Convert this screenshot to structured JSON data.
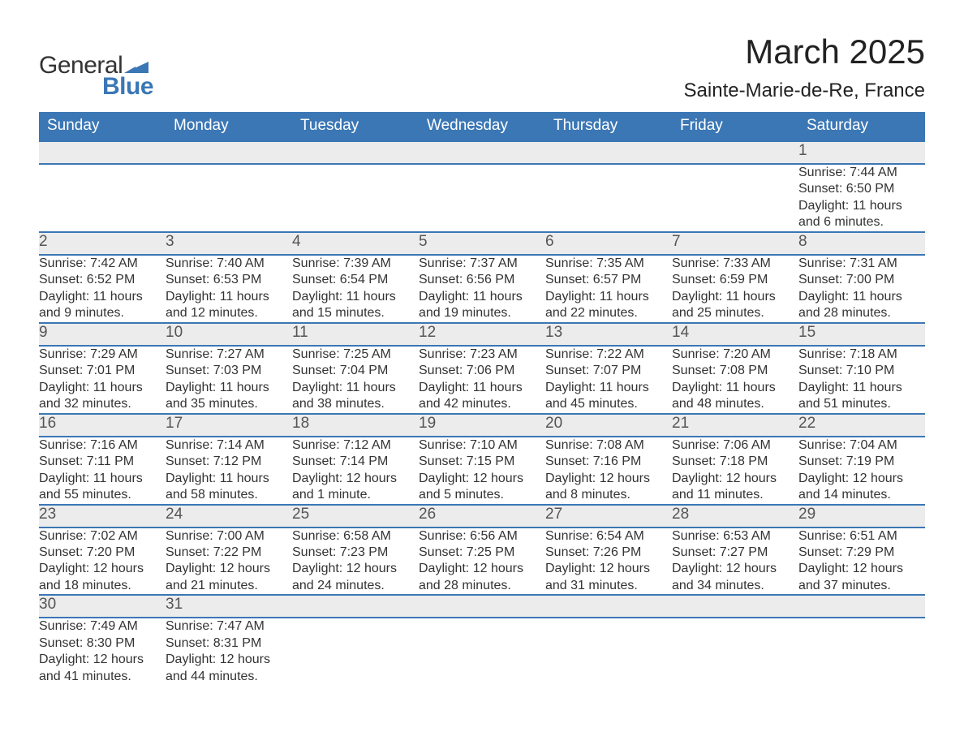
{
  "brand": {
    "word1": "General",
    "word2": "Blue",
    "mark_color": "#3b77b5",
    "text_color": "#333333"
  },
  "title": "March 2025",
  "location": "Sainte-Marie-de-Re, France",
  "styling": {
    "header_bg": "#3b77b5",
    "header_text": "#ffffff",
    "daynum_bg": "#ececec",
    "daynum_text": "#555555",
    "body_text": "#333333",
    "row_divider": "#3b77b5",
    "page_bg": "#ffffff",
    "title_fontsize": 42,
    "location_fontsize": 24,
    "header_fontsize": 19,
    "daynum_fontsize": 19,
    "cell_fontsize": 16,
    "font_family": "Arial"
  },
  "weekdays": [
    "Sunday",
    "Monday",
    "Tuesday",
    "Wednesday",
    "Thursday",
    "Friday",
    "Saturday"
  ],
  "weeks": [
    [
      null,
      null,
      null,
      null,
      null,
      null,
      {
        "d": "1",
        "sunrise": "Sunrise: 7:44 AM",
        "sunset": "Sunset: 6:50 PM",
        "daylight1": "Daylight: 11 hours",
        "daylight2": "and 6 minutes."
      }
    ],
    [
      {
        "d": "2",
        "sunrise": "Sunrise: 7:42 AM",
        "sunset": "Sunset: 6:52 PM",
        "daylight1": "Daylight: 11 hours",
        "daylight2": "and 9 minutes."
      },
      {
        "d": "3",
        "sunrise": "Sunrise: 7:40 AM",
        "sunset": "Sunset: 6:53 PM",
        "daylight1": "Daylight: 11 hours",
        "daylight2": "and 12 minutes."
      },
      {
        "d": "4",
        "sunrise": "Sunrise: 7:39 AM",
        "sunset": "Sunset: 6:54 PM",
        "daylight1": "Daylight: 11 hours",
        "daylight2": "and 15 minutes."
      },
      {
        "d": "5",
        "sunrise": "Sunrise: 7:37 AM",
        "sunset": "Sunset: 6:56 PM",
        "daylight1": "Daylight: 11 hours",
        "daylight2": "and 19 minutes."
      },
      {
        "d": "6",
        "sunrise": "Sunrise: 7:35 AM",
        "sunset": "Sunset: 6:57 PM",
        "daylight1": "Daylight: 11 hours",
        "daylight2": "and 22 minutes."
      },
      {
        "d": "7",
        "sunrise": "Sunrise: 7:33 AM",
        "sunset": "Sunset: 6:59 PM",
        "daylight1": "Daylight: 11 hours",
        "daylight2": "and 25 minutes."
      },
      {
        "d": "8",
        "sunrise": "Sunrise: 7:31 AM",
        "sunset": "Sunset: 7:00 PM",
        "daylight1": "Daylight: 11 hours",
        "daylight2": "and 28 minutes."
      }
    ],
    [
      {
        "d": "9",
        "sunrise": "Sunrise: 7:29 AM",
        "sunset": "Sunset: 7:01 PM",
        "daylight1": "Daylight: 11 hours",
        "daylight2": "and 32 minutes."
      },
      {
        "d": "10",
        "sunrise": "Sunrise: 7:27 AM",
        "sunset": "Sunset: 7:03 PM",
        "daylight1": "Daylight: 11 hours",
        "daylight2": "and 35 minutes."
      },
      {
        "d": "11",
        "sunrise": "Sunrise: 7:25 AM",
        "sunset": "Sunset: 7:04 PM",
        "daylight1": "Daylight: 11 hours",
        "daylight2": "and 38 minutes."
      },
      {
        "d": "12",
        "sunrise": "Sunrise: 7:23 AM",
        "sunset": "Sunset: 7:06 PM",
        "daylight1": "Daylight: 11 hours",
        "daylight2": "and 42 minutes."
      },
      {
        "d": "13",
        "sunrise": "Sunrise: 7:22 AM",
        "sunset": "Sunset: 7:07 PM",
        "daylight1": "Daylight: 11 hours",
        "daylight2": "and 45 minutes."
      },
      {
        "d": "14",
        "sunrise": "Sunrise: 7:20 AM",
        "sunset": "Sunset: 7:08 PM",
        "daylight1": "Daylight: 11 hours",
        "daylight2": "and 48 minutes."
      },
      {
        "d": "15",
        "sunrise": "Sunrise: 7:18 AM",
        "sunset": "Sunset: 7:10 PM",
        "daylight1": "Daylight: 11 hours",
        "daylight2": "and 51 minutes."
      }
    ],
    [
      {
        "d": "16",
        "sunrise": "Sunrise: 7:16 AM",
        "sunset": "Sunset: 7:11 PM",
        "daylight1": "Daylight: 11 hours",
        "daylight2": "and 55 minutes."
      },
      {
        "d": "17",
        "sunrise": "Sunrise: 7:14 AM",
        "sunset": "Sunset: 7:12 PM",
        "daylight1": "Daylight: 11 hours",
        "daylight2": "and 58 minutes."
      },
      {
        "d": "18",
        "sunrise": "Sunrise: 7:12 AM",
        "sunset": "Sunset: 7:14 PM",
        "daylight1": "Daylight: 12 hours",
        "daylight2": "and 1 minute."
      },
      {
        "d": "19",
        "sunrise": "Sunrise: 7:10 AM",
        "sunset": "Sunset: 7:15 PM",
        "daylight1": "Daylight: 12 hours",
        "daylight2": "and 5 minutes."
      },
      {
        "d": "20",
        "sunrise": "Sunrise: 7:08 AM",
        "sunset": "Sunset: 7:16 PM",
        "daylight1": "Daylight: 12 hours",
        "daylight2": "and 8 minutes."
      },
      {
        "d": "21",
        "sunrise": "Sunrise: 7:06 AM",
        "sunset": "Sunset: 7:18 PM",
        "daylight1": "Daylight: 12 hours",
        "daylight2": "and 11 minutes."
      },
      {
        "d": "22",
        "sunrise": "Sunrise: 7:04 AM",
        "sunset": "Sunset: 7:19 PM",
        "daylight1": "Daylight: 12 hours",
        "daylight2": "and 14 minutes."
      }
    ],
    [
      {
        "d": "23",
        "sunrise": "Sunrise: 7:02 AM",
        "sunset": "Sunset: 7:20 PM",
        "daylight1": "Daylight: 12 hours",
        "daylight2": "and 18 minutes."
      },
      {
        "d": "24",
        "sunrise": "Sunrise: 7:00 AM",
        "sunset": "Sunset: 7:22 PM",
        "daylight1": "Daylight: 12 hours",
        "daylight2": "and 21 minutes."
      },
      {
        "d": "25",
        "sunrise": "Sunrise: 6:58 AM",
        "sunset": "Sunset: 7:23 PM",
        "daylight1": "Daylight: 12 hours",
        "daylight2": "and 24 minutes."
      },
      {
        "d": "26",
        "sunrise": "Sunrise: 6:56 AM",
        "sunset": "Sunset: 7:25 PM",
        "daylight1": "Daylight: 12 hours",
        "daylight2": "and 28 minutes."
      },
      {
        "d": "27",
        "sunrise": "Sunrise: 6:54 AM",
        "sunset": "Sunset: 7:26 PM",
        "daylight1": "Daylight: 12 hours",
        "daylight2": "and 31 minutes."
      },
      {
        "d": "28",
        "sunrise": "Sunrise: 6:53 AM",
        "sunset": "Sunset: 7:27 PM",
        "daylight1": "Daylight: 12 hours",
        "daylight2": "and 34 minutes."
      },
      {
        "d": "29",
        "sunrise": "Sunrise: 6:51 AM",
        "sunset": "Sunset: 7:29 PM",
        "daylight1": "Daylight: 12 hours",
        "daylight2": "and 37 minutes."
      }
    ],
    [
      {
        "d": "30",
        "sunrise": "Sunrise: 7:49 AM",
        "sunset": "Sunset: 8:30 PM",
        "daylight1": "Daylight: 12 hours",
        "daylight2": "and 41 minutes."
      },
      {
        "d": "31",
        "sunrise": "Sunrise: 7:47 AM",
        "sunset": "Sunset: 8:31 PM",
        "daylight1": "Daylight: 12 hours",
        "daylight2": "and 44 minutes."
      },
      null,
      null,
      null,
      null,
      null
    ]
  ]
}
